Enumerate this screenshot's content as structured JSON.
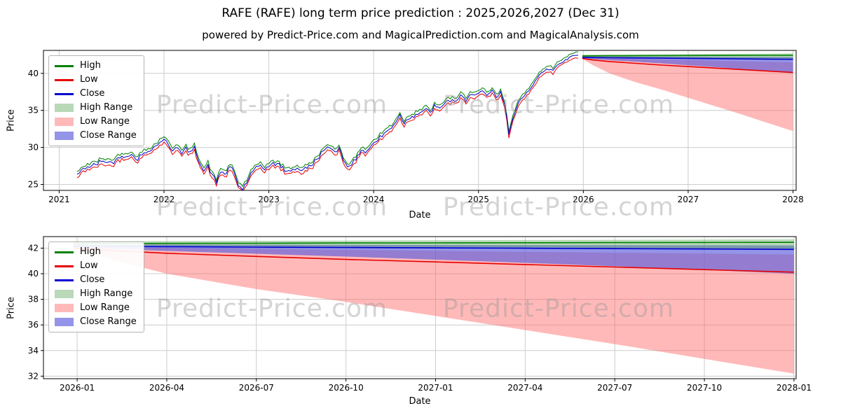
{
  "title": "RAFE (RAFE) long term price prediction : 2025,2026,2027 (Dec 31)",
  "subtitle": "powered by Predict-Price.com and MagicalPrediction.com and MagicalAnalysis.com",
  "watermark": "Predict-Price.com",
  "colors": {
    "high": "#008000",
    "low": "#e60000",
    "close": "#0000cd",
    "high_range": "rgba(80,160,80,0.4)",
    "low_range": "rgba(255,100,100,0.45)",
    "close_range": "rgba(90,90,220,0.65)",
    "grid": "#cccccc",
    "spine": "#000000"
  },
  "legend": {
    "items": [
      {
        "label": "High",
        "swatch": "line",
        "color": "high"
      },
      {
        "label": "Low",
        "swatch": "line",
        "color": "low"
      },
      {
        "label": "Close",
        "swatch": "line",
        "color": "close"
      },
      {
        "label": "High Range",
        "swatch": "patch",
        "color": "high_range"
      },
      {
        "label": "Low Range",
        "swatch": "patch",
        "color": "low_range"
      },
      {
        "label": "Close Range",
        "swatch": "patch",
        "color": "close_range"
      }
    ]
  },
  "chart_data": [
    {
      "type": "line",
      "title": "",
      "xlabel": "Date",
      "ylabel": "Price",
      "grid": true,
      "legend_position": "upper left",
      "xlim": [
        2020.85,
        2028.03
      ],
      "ylim": [
        24.2,
        43.1
      ],
      "x_ticks": [
        {
          "v": 2021,
          "label": "2021"
        },
        {
          "v": 2022,
          "label": "2022"
        },
        {
          "v": 2023,
          "label": "2023"
        },
        {
          "v": 2024,
          "label": "2024"
        },
        {
          "v": 2025,
          "label": "2025"
        },
        {
          "v": 2026,
          "label": "2026"
        },
        {
          "v": 2027,
          "label": "2027"
        },
        {
          "v": 2028,
          "label": "2028"
        }
      ],
      "y_ticks": [
        25,
        30,
        35,
        40
      ],
      "series": {
        "historical": {
          "description": "Overlapping High/Low/Close daily history 2021-03 to 2026-01; close anchors in [decimal_year, price]",
          "step": 0.02,
          "noise_amplitude": 0.25,
          "high_offset": 0.28,
          "low_offset": 0.28,
          "close_anchors": [
            [
              2021.17,
              26.3
            ],
            [
              2021.25,
              27.3
            ],
            [
              2021.33,
              27.6
            ],
            [
              2021.42,
              28.2
            ],
            [
              2021.5,
              27.9
            ],
            [
              2021.58,
              28.7
            ],
            [
              2021.67,
              29.1
            ],
            [
              2021.75,
              28.5
            ],
            [
              2021.83,
              29.4
            ],
            [
              2021.92,
              30.1
            ],
            [
              2022.0,
              31.2
            ],
            [
              2022.04,
              30.3
            ],
            [
              2022.08,
              29.6
            ],
            [
              2022.13,
              30.2
            ],
            [
              2022.17,
              29.1
            ],
            [
              2022.21,
              29.8
            ],
            [
              2022.25,
              29.3
            ],
            [
              2022.29,
              29.9
            ],
            [
              2022.33,
              28.4
            ],
            [
              2022.38,
              26.8
            ],
            [
              2022.42,
              27.6
            ],
            [
              2022.46,
              26.2
            ],
            [
              2022.5,
              25.3
            ],
            [
              2022.54,
              26.9
            ],
            [
              2022.58,
              26.3
            ],
            [
              2022.63,
              27.3
            ],
            [
              2022.67,
              26.6
            ],
            [
              2022.71,
              24.9
            ],
            [
              2022.75,
              24.4
            ],
            [
              2022.79,
              25.3
            ],
            [
              2022.83,
              26.4
            ],
            [
              2022.88,
              27.2
            ],
            [
              2022.92,
              27.6
            ],
            [
              2022.96,
              27.1
            ],
            [
              2023.0,
              27.5
            ],
            [
              2023.08,
              27.9
            ],
            [
              2023.17,
              26.7
            ],
            [
              2023.25,
              27.2
            ],
            [
              2023.33,
              26.9
            ],
            [
              2023.42,
              27.8
            ],
            [
              2023.5,
              29.2
            ],
            [
              2023.58,
              30.0
            ],
            [
              2023.63,
              29.5
            ],
            [
              2023.67,
              29.9
            ],
            [
              2023.71,
              28.4
            ],
            [
              2023.75,
              27.5
            ],
            [
              2023.83,
              28.2
            ],
            [
              2023.88,
              29.8
            ],
            [
              2023.92,
              29.4
            ],
            [
              2024.0,
              30.6
            ],
            [
              2024.08,
              31.6
            ],
            [
              2024.17,
              32.7
            ],
            [
              2024.25,
              34.3
            ],
            [
              2024.29,
              33.3
            ],
            [
              2024.33,
              33.9
            ],
            [
              2024.42,
              34.6
            ],
            [
              2024.5,
              35.1
            ],
            [
              2024.54,
              34.7
            ],
            [
              2024.58,
              35.5
            ],
            [
              2024.63,
              35.1
            ],
            [
              2024.67,
              36.0
            ],
            [
              2024.75,
              36.5
            ],
            [
              2024.79,
              36.1
            ],
            [
              2024.83,
              37.0
            ],
            [
              2024.88,
              36.4
            ],
            [
              2024.92,
              37.3
            ],
            [
              2024.96,
              36.9
            ],
            [
              2025.0,
              37.1
            ],
            [
              2025.04,
              37.6
            ],
            [
              2025.08,
              36.9
            ],
            [
              2025.13,
              37.7
            ],
            [
              2025.17,
              36.7
            ],
            [
              2025.21,
              37.3
            ],
            [
              2025.25,
              35.8
            ],
            [
              2025.29,
              31.9
            ],
            [
              2025.33,
              34.2
            ],
            [
              2025.38,
              35.8
            ],
            [
              2025.42,
              36.6
            ],
            [
              2025.46,
              37.3
            ],
            [
              2025.5,
              38.2
            ],
            [
              2025.54,
              39.1
            ],
            [
              2025.58,
              39.8
            ],
            [
              2025.63,
              40.2
            ],
            [
              2025.67,
              40.7
            ],
            [
              2025.71,
              40.3
            ],
            [
              2025.75,
              41.1
            ],
            [
              2025.79,
              41.5
            ],
            [
              2025.83,
              41.9
            ],
            [
              2025.88,
              42.3
            ],
            [
              2025.95,
              42.5
            ]
          ]
        },
        "prediction": {
          "description": "Forecast lines and uncertainty bands 2026-01 to 2028-01",
          "x": [
            2025.99,
            2026.1,
            2026.25,
            2026.5,
            2026.75,
            2027.0,
            2027.25,
            2027.5,
            2027.75,
            2028.0
          ],
          "high": [
            42.35,
            42.36,
            42.37,
            42.38,
            42.4,
            42.41,
            42.42,
            42.43,
            42.44,
            42.45
          ],
          "close": [
            42.15,
            42.13,
            42.11,
            42.08,
            42.05,
            42.02,
            41.99,
            41.96,
            41.93,
            41.9
          ],
          "low": [
            42.0,
            41.8,
            41.6,
            41.35,
            41.12,
            40.92,
            40.72,
            40.52,
            40.32,
            40.12
          ],
          "high_range_upper": [
            42.52,
            42.53,
            42.55,
            42.57,
            42.59,
            42.61,
            42.63,
            42.65,
            42.67,
            42.7
          ],
          "high_range_lower": [
            42.2,
            42.19,
            42.17,
            42.14,
            42.11,
            42.08,
            42.05,
            42.02,
            41.99,
            41.96
          ],
          "close_range_upper": [
            42.3,
            42.29,
            42.28,
            42.27,
            42.26,
            42.25,
            42.24,
            42.23,
            42.22,
            42.21
          ],
          "close_range_lower": [
            42.05,
            41.92,
            41.78,
            41.56,
            41.34,
            41.1,
            40.85,
            40.58,
            40.3,
            40.0
          ],
          "low_range_upper": [
            42.12,
            42.06,
            42.0,
            41.93,
            41.86,
            41.79,
            41.71,
            41.64,
            41.57,
            41.5
          ],
          "low_range_lower": [
            41.95,
            41.05,
            40.0,
            38.8,
            37.8,
            36.7,
            35.6,
            34.5,
            33.35,
            32.2
          ]
        }
      }
    },
    {
      "type": "line",
      "title": "",
      "xlabel": "Date",
      "ylabel": "Price",
      "grid": true,
      "legend_position": "upper left",
      "xlim": [
        2025.906,
        2028.006
      ],
      "ylim": [
        31.8,
        42.9
      ],
      "x_ticks": [
        {
          "v": 2026.0,
          "label": "2026-01"
        },
        {
          "v": 2026.25,
          "label": "2026-04"
        },
        {
          "v": 2026.5,
          "label": "2026-07"
        },
        {
          "v": 2026.75,
          "label": "2026-10"
        },
        {
          "v": 2027.0,
          "label": "2027-01"
        },
        {
          "v": 2027.25,
          "label": "2027-04"
        },
        {
          "v": 2027.5,
          "label": "2027-07"
        },
        {
          "v": 2027.75,
          "label": "2027-10"
        },
        {
          "v": 2028.0,
          "label": "2028-01"
        }
      ],
      "y_ticks": [
        32,
        34,
        36,
        38,
        40,
        42
      ],
      "series": {
        "prediction_same_as_top_chart": true
      }
    }
  ]
}
